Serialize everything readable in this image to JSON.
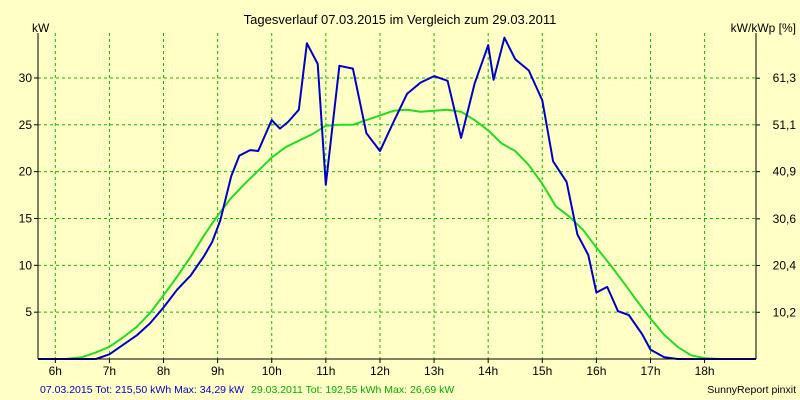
{
  "chart_data": {
    "type": "line",
    "title": "Tagesverlauf 07.03.2015 im Vergleich zum 29.03.2011",
    "ylabel_left": "kW",
    "ylabel_right": "kW/kWp [%]",
    "xlim": [
      5.68,
      18.95
    ],
    "ylim": [
      0,
      34.8
    ],
    "x_ticks": [
      6,
      7,
      8,
      9,
      10,
      11,
      12,
      13,
      14,
      15,
      16,
      17,
      18
    ],
    "x_tick_labels": [
      "6h",
      "7h",
      "8h",
      "9h",
      "10h",
      "11h",
      "12h",
      "13h",
      "14h",
      "15h",
      "16h",
      "17h",
      "18h"
    ],
    "y_ticks": [
      5,
      10,
      15,
      20,
      25,
      30
    ],
    "y_tick_labels": [
      "5",
      "10",
      "15",
      "20",
      "25",
      "30"
    ],
    "y2_ticks": [
      10.2,
      20.4,
      30.6,
      40.9,
      51.1,
      61.3
    ],
    "y2_tick_labels": [
      "10,2",
      "20,4",
      "30,6",
      "40,9",
      "51,1",
      "61,3"
    ],
    "y2_to_y_factor": 0.489,
    "grid": true,
    "legend_text": {
      "series1": "07.03.2015 Tot: 215,50 kWh Max: 34,29 kW",
      "series2": "29.03.2011 Tot: 192,55 kWh Max: 26,69 kW"
    },
    "credit": "SunnyReport pinxit",
    "colors": {
      "background": "#ffffc6",
      "grid": "#00c000",
      "axis": "#000000",
      "series1": "#0000c8",
      "series2": "#22dd22"
    },
    "series": [
      {
        "x": [
          5.68,
          6.5,
          6.75,
          7.0,
          7.25,
          7.5,
          7.75,
          8.0,
          8.25,
          8.5,
          8.75,
          8.9,
          9.05,
          9.25,
          9.4,
          9.6,
          9.75,
          10.0,
          10.15,
          10.3,
          10.5,
          10.65,
          10.85,
          11.0,
          11.25,
          11.5,
          11.75,
          12.0,
          12.25,
          12.5,
          12.75,
          13.0,
          13.25,
          13.5,
          13.75,
          14.0,
          14.1,
          14.3,
          14.5,
          14.75,
          15.0,
          15.2,
          15.45,
          15.65,
          15.85,
          16.0,
          16.2,
          16.4,
          16.6,
          16.85,
          17.0,
          17.25,
          17.5,
          17.75,
          18.0,
          18.95
        ],
        "y": [
          0,
          0,
          0,
          0.5,
          1.5,
          2.5,
          3.8,
          5.5,
          7.4,
          8.9,
          11.0,
          12.5,
          14.8,
          19.5,
          21.7,
          22.3,
          22.2,
          25.5,
          24.6,
          25.3,
          26.6,
          33.7,
          31.5,
          18.6,
          31.3,
          31.0,
          24.1,
          22.2,
          25.3,
          28.3,
          29.5,
          30.2,
          29.7,
          23.6,
          29.4,
          33.5,
          29.8,
          34.3,
          32.0,
          30.8,
          27.6,
          21.1,
          18.9,
          13.3,
          11.1,
          7.1,
          7.7,
          5.1,
          4.7,
          2.6,
          1.0,
          0.2,
          0,
          0,
          0,
          0
        ]
      },
      {
        "x": [
          5.68,
          6.2,
          6.5,
          6.75,
          7.0,
          7.25,
          7.5,
          7.75,
          8.0,
          8.25,
          8.5,
          8.75,
          9.0,
          9.25,
          9.5,
          9.75,
          10.0,
          10.25,
          10.5,
          10.75,
          11.0,
          11.25,
          11.5,
          11.75,
          12.0,
          12.25,
          12.5,
          12.75,
          13.0,
          13.25,
          13.5,
          13.75,
          14.0,
          14.25,
          14.5,
          14.75,
          15.0,
          15.25,
          15.5,
          15.75,
          16.0,
          16.25,
          16.5,
          16.75,
          17.0,
          17.25,
          17.5,
          17.75,
          18.0,
          18.25,
          18.5,
          18.95
        ],
        "y": [
          0,
          0,
          0.2,
          0.7,
          1.3,
          2.3,
          3.4,
          4.9,
          6.8,
          8.8,
          10.9,
          13.2,
          15.3,
          17.2,
          18.7,
          20.1,
          21.5,
          22.6,
          23.3,
          24.0,
          24.9,
          25.0,
          25.0,
          25.5,
          26.0,
          26.5,
          26.6,
          26.4,
          26.5,
          26.6,
          26.4,
          25.5,
          24.4,
          23.0,
          22.2,
          20.7,
          18.7,
          16.3,
          15.2,
          13.8,
          11.9,
          10.1,
          8.2,
          6.2,
          4.3,
          2.6,
          1.3,
          0.4,
          0.1,
          0,
          0,
          0
        ]
      }
    ]
  }
}
